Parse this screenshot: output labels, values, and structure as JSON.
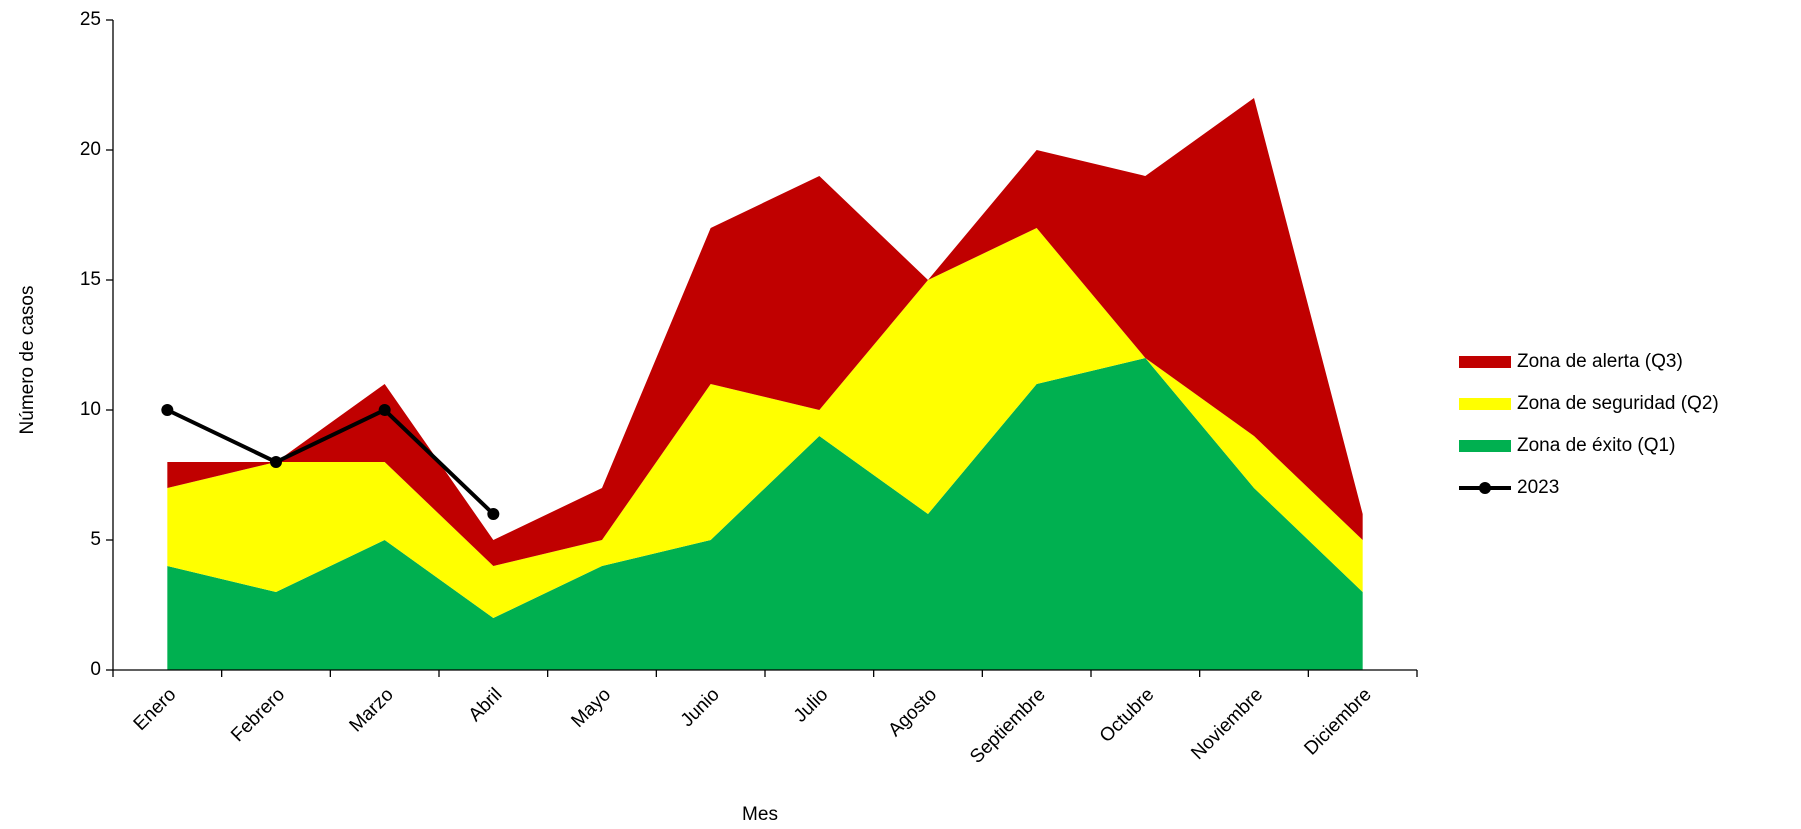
{
  "chart_data": {
    "type": "area",
    "stacked": true,
    "y_label": "Número de casos",
    "x_label": "Mes",
    "categories": [
      "Enero",
      "Febrero",
      "Marzo",
      "Abril",
      "Mayo",
      "Junio",
      "Julio",
      "Agosto",
      "Septiembre",
      "Octubre",
      "Noviembre",
      "Diciembre"
    ],
    "series": [
      {
        "name": "Zona de éxito (Q1)",
        "color": "#00b050",
        "values": [
          4,
          3,
          5,
          2,
          4,
          5,
          9,
          6,
          11,
          12,
          7,
          3
        ]
      },
      {
        "name": "Zona de seguridad (Q2)",
        "color": "#ffff00",
        "values": [
          3,
          5,
          3,
          2,
          1,
          6,
          1,
          9,
          6,
          0,
          2,
          2
        ]
      },
      {
        "name": "Zona de alerta (Q3)",
        "color": "#c00000",
        "values": [
          1,
          0,
          3,
          1,
          2,
          6,
          9,
          0,
          3,
          7,
          13,
          1
        ]
      },
      {
        "name": "2023",
        "type": "line",
        "color": "#000000",
        "values": [
          10,
          8,
          10,
          6,
          null,
          null,
          null,
          null,
          null,
          null,
          null,
          null
        ]
      }
    ],
    "ylim": [
      0,
      25
    ],
    "yticks": [
      0,
      5,
      10,
      15,
      20,
      25
    ],
    "legend": "right"
  }
}
